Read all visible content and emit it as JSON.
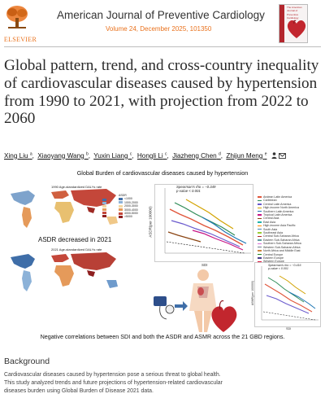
{
  "publisher": {
    "name": "ELSEVIER"
  },
  "journal": {
    "title": "American Journal of Preventive Cardiology",
    "meta": "Volume 24, December 2025, 101350"
  },
  "cover": {
    "title_lines": [
      "The American Journal of",
      "Preventive Cardiology"
    ]
  },
  "article": {
    "title": "Global pattern, trend, and cross-country inequality of cardiovascular diseases caused by hypertension from 1990 to 2021, with projection from 2022 to 2060"
  },
  "authors": [
    {
      "name": "Xing Liu",
      "sup": "a"
    },
    {
      "name": "Xiaoyang Wang",
      "sup": "b"
    },
    {
      "name": "Yuxin Liang",
      "sup": "c"
    },
    {
      "name": "Hongli Li",
      "sup": "c"
    },
    {
      "name": "Jiazheng Chen",
      "sup": "d"
    },
    {
      "name": "Zhijun Meng",
      "sup": "e"
    }
  ],
  "graphical_abstract": {
    "title": "Global Burden of cardiovascular diseases caused by hypertension",
    "map1_label": "1990 Age-standardized DALYs rate",
    "map2_label": "2021 Age-standardized DALYs rate",
    "mid_caption": "ASDR decreased in 2021",
    "bottom_caption": "Negative correlations between SDI and both the ASDR and ASMR across the 21 GBD regions.",
    "plot1": {
      "stat": "Spearman's rho = −0.349",
      "p": "p-value < 0.001",
      "xlabel": "SDI",
      "ylabel": "ASDR(per 100000)"
    },
    "plot2": {
      "stat": "Spearman's rho = −0.416",
      "p": "p-value < 0.001",
      "xlabel": "SDI",
      "ylabel": "ASMR(per 100000)"
    },
    "legend_regions": [
      "Andean Latin America",
      "Caribbean",
      "Central Latin America",
      "High-income North America",
      "Southern Latin America",
      "Tropical Latin America",
      "Central Asia",
      "East Asia",
      "High-income Asia Pacific",
      "South Asia",
      "Southeast Asia",
      "Central Sub-Saharan Africa",
      "Eastern Sub-Saharan Africa",
      "Southern Sub-Saharan Africa",
      "Western Sub-Saharan Africa",
      "North Africa and Middle East",
      "Central Europe",
      "Eastern Europe",
      "Western Europe",
      "Australasia",
      "Oceania"
    ],
    "scale_title": "ASDR",
    "scale_ranges": [
      "<1000",
      "1000-2000",
      "2000-3000",
      "3000-4000",
      "4000-5000",
      ">5000"
    ]
  },
  "background": {
    "heading": "Background",
    "lines": [
      "Cardiovascular diseases caused by hypertension pose a serious threat to global health.",
      "This study analyzed trends and future projections of hypertension-related cardiovascular",
      "diseases burden using Global Burden of Disease 2021 data."
    ]
  },
  "colors": {
    "accent_orange": "#e9711c",
    "map_red": "#c43a2f",
    "map_blue": "#3f6ea8"
  }
}
